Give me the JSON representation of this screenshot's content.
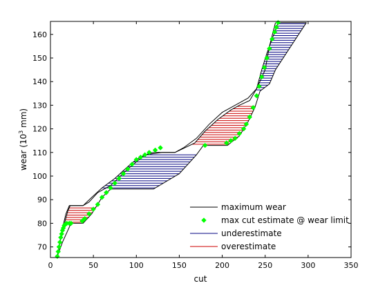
{
  "chart_data": {
    "type": "line",
    "title": "",
    "xlabel": "cut",
    "ylabel": {
      "prefix": "wear (10",
      "exponent": "3",
      "suffix": " mm)"
    },
    "xlim": [
      0,
      350
    ],
    "ylim": [
      65.5,
      165.5
    ],
    "xticks": [
      0,
      50,
      100,
      150,
      200,
      250,
      300,
      350
    ],
    "yticks": [
      70,
      80,
      90,
      100,
      110,
      120,
      130,
      140,
      150,
      160
    ],
    "grid": false,
    "legend_position": "bottom-right",
    "legend": [
      {
        "label": "maximum wear",
        "kind": "line",
        "color": "#000000"
      },
      {
        "label": "max cut estimate @ wear limit",
        "kind": "marker",
        "color": "#00ff00"
      },
      {
        "label": "underestimate",
        "kind": "line",
        "color": "#000080"
      },
      {
        "label": "overestimate",
        "kind": "line",
        "color": "#cc0000"
      }
    ],
    "series": [
      {
        "role": "maximum wear",
        "color": "#000000",
        "points": [
          [
            8,
            66
          ],
          [
            10,
            70
          ],
          [
            14,
            78
          ],
          [
            18,
            84
          ],
          [
            22,
            87.5
          ],
          [
            38,
            87.5
          ],
          [
            45,
            89
          ],
          [
            55,
            93
          ],
          [
            70,
            96
          ],
          [
            90,
            103
          ],
          [
            110,
            109
          ],
          [
            130,
            110
          ],
          [
            145,
            110
          ],
          [
            155,
            112
          ],
          [
            170,
            116
          ],
          [
            185,
            122
          ],
          [
            200,
            127
          ],
          [
            215,
            130
          ],
          [
            230,
            133
          ],
          [
            240,
            137
          ],
          [
            250,
            145
          ],
          [
            255,
            155
          ],
          [
            262,
            165
          ]
        ]
      },
      {
        "role": "max cut estimate @ wear limit",
        "color": "#00ff00",
        "points": [
          [
            8,
            66
          ],
          [
            9,
            68
          ],
          [
            10,
            70
          ],
          [
            11,
            72
          ],
          [
            12,
            74
          ],
          [
            13,
            75.5
          ],
          [
            14,
            77
          ],
          [
            15,
            78
          ],
          [
            16,
            79
          ],
          [
            17,
            79.5
          ],
          [
            19,
            80
          ],
          [
            22,
            80
          ],
          [
            24,
            80
          ],
          [
            37,
            81
          ],
          [
            40,
            82
          ],
          [
            45,
            84
          ],
          [
            50,
            86
          ],
          [
            55,
            88
          ],
          [
            60,
            91
          ],
          [
            65,
            93
          ],
          [
            70,
            95
          ],
          [
            75,
            97
          ],
          [
            80,
            99
          ],
          [
            85,
            101
          ],
          [
            90,
            103
          ],
          [
            95,
            105
          ],
          [
            100,
            107
          ],
          [
            105,
            108
          ],
          [
            110,
            109
          ],
          [
            115,
            110
          ],
          [
            122,
            111
          ],
          [
            128,
            112
          ],
          [
            180,
            113
          ],
          [
            205,
            114
          ],
          [
            210,
            115
          ],
          [
            215,
            116
          ],
          [
            220,
            118
          ],
          [
            225,
            120
          ],
          [
            228,
            122
          ],
          [
            232,
            125
          ],
          [
            236,
            129
          ],
          [
            240,
            134
          ],
          [
            243,
            138
          ],
          [
            246,
            142
          ],
          [
            249,
            146
          ],
          [
            252,
            150
          ],
          [
            255,
            154
          ],
          [
            258,
            158
          ],
          [
            261,
            161
          ],
          [
            263,
            163
          ],
          [
            265,
            165
          ]
        ]
      },
      {
        "role": "upper band edge",
        "color": "#000000",
        "points": [
          [
            8,
            66
          ],
          [
            12,
            74
          ],
          [
            20,
            85
          ],
          [
            23,
            87.5
          ],
          [
            38,
            87.5
          ],
          [
            48,
            91
          ],
          [
            60,
            95
          ],
          [
            75,
            99
          ],
          [
            90,
            104
          ],
          [
            100,
            107
          ],
          [
            110,
            109
          ],
          [
            120,
            110
          ],
          [
            145,
            110
          ],
          [
            168,
            114
          ],
          [
            180,
            119
          ],
          [
            195,
            124
          ],
          [
            210,
            128
          ],
          [
            220,
            130
          ],
          [
            232,
            132
          ],
          [
            240,
            137
          ],
          [
            246,
            145
          ],
          [
            252,
            152
          ],
          [
            258,
            158
          ],
          [
            265,
            165
          ],
          [
            298,
            165
          ]
        ]
      },
      {
        "role": "lower band edge",
        "color": "#000000",
        "points": [
          [
            8,
            66
          ],
          [
            14,
            72
          ],
          [
            24,
            80
          ],
          [
            38,
            80
          ],
          [
            48,
            84
          ],
          [
            60,
            91
          ],
          [
            70,
            94.5
          ],
          [
            120,
            94.5
          ],
          [
            150,
            101
          ],
          [
            160,
            105
          ],
          [
            170,
            109
          ],
          [
            178,
            113
          ],
          [
            180,
            113
          ],
          [
            206,
            113
          ],
          [
            220,
            117
          ],
          [
            230,
            123
          ],
          [
            238,
            129
          ],
          [
            244,
            136
          ],
          [
            255,
            139
          ],
          [
            262,
            145
          ],
          [
            280,
            155
          ],
          [
            298,
            165
          ]
        ]
      }
    ],
    "band_fill": [
      {
        "label": "overestimate",
        "color": "#cc0000",
        "segments": [
          [
            [
              20,
              87.5
            ],
            [
              38,
              87.5
            ]
          ],
          [
            [
              20,
              80
            ],
            [
              38,
              80
            ]
          ]
        ],
        "y_range": [
          80,
          87.5
        ]
      },
      {
        "label": "underestimate",
        "color": "#000080",
        "y_range": [
          94.5,
          110
        ]
      },
      {
        "label": "overestimate",
        "color": "#cc0000",
        "y_range": [
          113,
          130
        ]
      },
      {
        "label": "underestimate",
        "color": "#000080",
        "y_range": [
          136,
          165
        ]
      }
    ]
  }
}
